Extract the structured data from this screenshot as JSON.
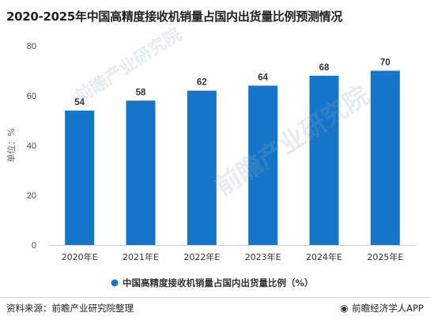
{
  "header": {
    "title": "2020-2025年中国高精度接收机销量占国内出货量比例预测情况"
  },
  "chart_data": {
    "type": "bar",
    "categories": [
      "2020年E",
      "2021年E",
      "2022年E",
      "2023年E",
      "2024年E",
      "2025年E"
    ],
    "series": [
      {
        "name": "中国高精度接收机销量占国内出货量比例（%）",
        "values": [
          54,
          58,
          62,
          64,
          68,
          70
        ]
      }
    ],
    "ylabel": "单位：%",
    "ylim": [
      0,
      80
    ],
    "yticks": [
      0,
      20,
      40,
      60,
      80
    ],
    "grid": false,
    "legend_position": "bottom",
    "bar_color": "#1576c9"
  },
  "watermark": {
    "text": "前瞻产业研究院"
  },
  "footer": {
    "source": "资料来源：前瞻产业研究院整理",
    "brand": "前瞻经济学人APP"
  }
}
